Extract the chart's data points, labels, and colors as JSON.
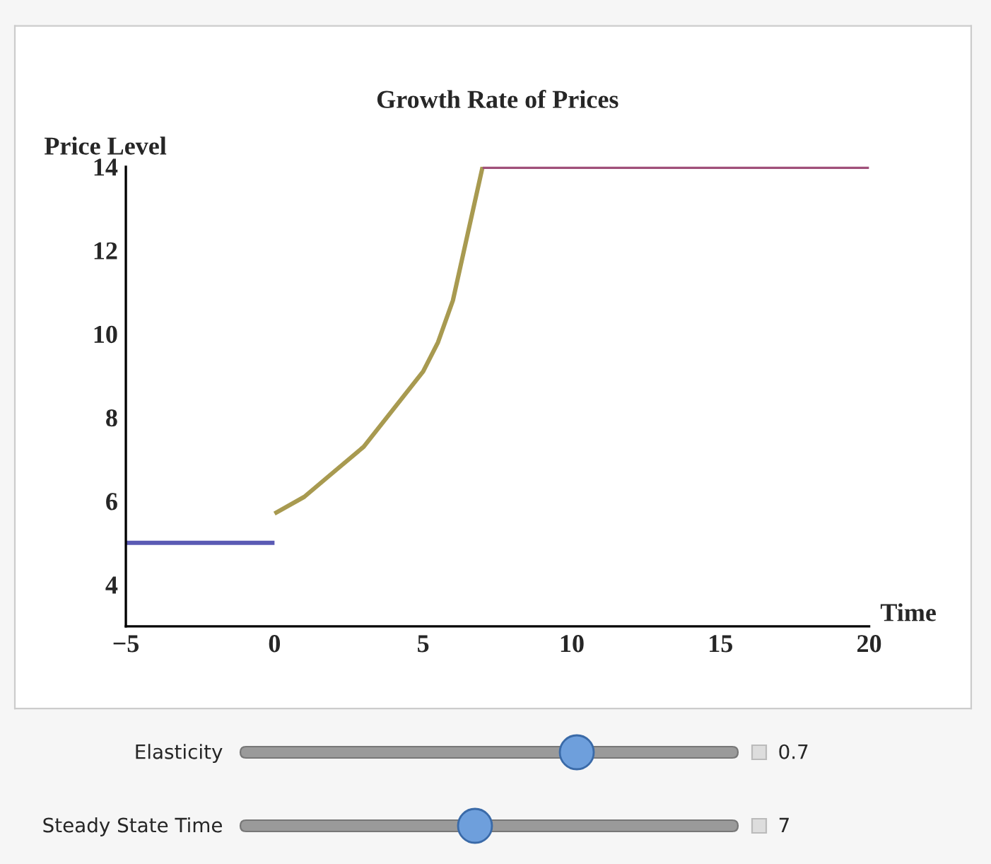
{
  "chart_data": {
    "type": "line",
    "title": "Growth Rate of Prices",
    "xlabel": "Time",
    "ylabel": "Price Level",
    "series": [
      {
        "color": "#5a5ab4",
        "x": [
          -5,
          0
        ],
        "values": [
          5,
          5
        ]
      },
      {
        "color": "#a89a50",
        "x": [
          0,
          1,
          2,
          3,
          4,
          5,
          5.5,
          6,
          6.5,
          7
        ],
        "values": [
          5.7,
          6.1,
          6.7,
          7.3,
          8.2,
          9.1,
          9.8,
          10.8,
          12.4,
          14
        ]
      },
      {
        "color": "#a0507a",
        "x": [
          7,
          20
        ],
        "values": [
          14,
          14
        ]
      }
    ],
    "xlim": [
      -5,
      20
    ],
    "xticks": [
      {
        "value": -5,
        "label": "−5"
      },
      0,
      5,
      10,
      15,
      20
    ],
    "ylim": [
      3,
      14
    ],
    "yticks": [
      4,
      6,
      8,
      10,
      12,
      14
    ],
    "grid": false,
    "legend": false,
    "marker": "none",
    "line_style": "solid",
    "annotations": [
      "Elasticity",
      "0.7",
      "Steady State Time",
      "7"
    ]
  }
}
